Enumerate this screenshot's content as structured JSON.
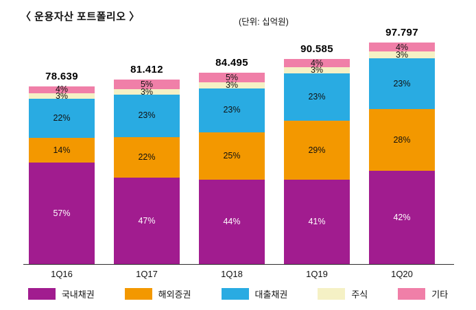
{
  "title": "〈 운용자산 포트폴리오 〉",
  "unit_label": "(단위: 십억원)",
  "chart_data": {
    "type": "bar",
    "stacked": true,
    "grid": false,
    "legend_position": "bottom",
    "categories": [
      "1Q16",
      "1Q17",
      "1Q18",
      "1Q19",
      "1Q20"
    ],
    "totals": [
      78.639,
      81.412,
      84.495,
      90.585,
      97.797
    ],
    "total_labels": [
      "78.639",
      "81.412",
      "84.495",
      "90.585",
      "97.797"
    ],
    "series": [
      {
        "key": "domestic-bonds",
        "name": "국내채권",
        "color": "#A11C8F",
        "label_color": "#FFFFFF",
        "values_pct": [
          57,
          47,
          44,
          41,
          42
        ]
      },
      {
        "key": "overseas-securities",
        "name": "해외증권",
        "color": "#F39800",
        "label_color": "#111111",
        "values_pct": [
          14,
          22,
          25,
          29,
          28
        ]
      },
      {
        "key": "loan-receivables",
        "name": "대출채권",
        "color": "#29ABE2",
        "label_color": "#111111",
        "values_pct": [
          22,
          23,
          23,
          23,
          23
        ]
      },
      {
        "key": "stocks",
        "name": "주식",
        "color": "#F5F1C5",
        "label_color": "#111111",
        "values_pct": [
          3,
          3,
          3,
          3,
          3
        ]
      },
      {
        "key": "others",
        "name": "기타",
        "color": "#F07FA8",
        "label_color": "#111111",
        "values_pct": [
          4,
          5,
          5,
          4,
          4
        ]
      }
    ]
  }
}
